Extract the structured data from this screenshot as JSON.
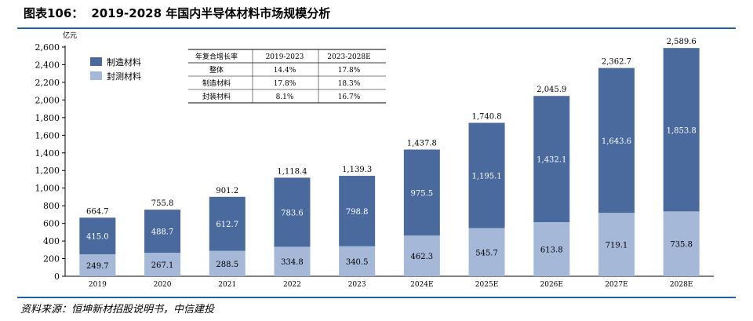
{
  "header": {
    "figure_number": "图表106：",
    "title": "2019-2028 年国内半导体材料市场规模分析"
  },
  "source": "资料来源：恒坤新材招股说明书，中信建投",
  "colors": {
    "manufacturing": "#4a6a9e",
    "packaging": "#a6b8d8",
    "rule": "#1f5fa3"
  },
  "chart_data": {
    "type": "bar",
    "stacked": true,
    "ylabel": "亿元",
    "ylim": [
      0,
      2600
    ],
    "yticks": [
      0,
      200,
      400,
      600,
      800,
      1000,
      1200,
      1400,
      1600,
      1800,
      2000,
      2200,
      2400,
      2600
    ],
    "ytick_labels": [
      "0",
      "200",
      "400",
      "600",
      "800",
      "1,000",
      "1,200",
      "1,400",
      "1,600",
      "1,800",
      "2,000",
      "2,200",
      "2,400",
      "2,600"
    ],
    "categories": [
      "2019",
      "2020",
      "2021",
      "2022",
      "2023",
      "2024E",
      "2025E",
      "2026E",
      "2027E",
      "2028E"
    ],
    "series": [
      {
        "name": "封测材料",
        "values": [
          249.7,
          267.1,
          288.5,
          334.8,
          340.5,
          462.3,
          545.7,
          613.8,
          719.1,
          735.8
        ],
        "labels": [
          "249.7",
          "267.1",
          "288.5",
          "334.8",
          "340.5",
          "462.3",
          "545.7",
          "613.8",
          "719.1",
          "735.8"
        ]
      },
      {
        "name": "制造材料",
        "values": [
          415.0,
          488.7,
          612.7,
          783.6,
          798.8,
          975.5,
          1195.1,
          1432.1,
          1643.6,
          1853.8
        ],
        "labels": [
          "415.0",
          "488.7",
          "612.7",
          "783.6",
          "798.8",
          "975.5",
          "1,195.1",
          "1,432.1",
          "1,643.6",
          "1,853.8"
        ]
      }
    ],
    "totals": [
      664.7,
      755.8,
      901.2,
      1118.4,
      1139.3,
      1437.8,
      1740.8,
      2045.9,
      2362.7,
      2589.6
    ],
    "total_labels": [
      "664.7",
      "755.8",
      "901.2",
      "1,118.4",
      "1,139.3",
      "1,437.8",
      "1,740.8",
      "2,045.9",
      "2,362.7",
      "2,589.6"
    ],
    "legend": [
      "制造材料",
      "封测材料"
    ],
    "legend_position": "top-left",
    "grid": false,
    "table": {
      "header": [
        "年复合增长率",
        "2019-2023",
        "2023-2028E"
      ],
      "rows": [
        [
          "整体",
          "14.4%",
          "17.8%"
        ],
        [
          "制造材料",
          "17.8%",
          "18.3%"
        ],
        [
          "封装材料",
          "8.1%",
          "16.7%"
        ]
      ]
    }
  }
}
